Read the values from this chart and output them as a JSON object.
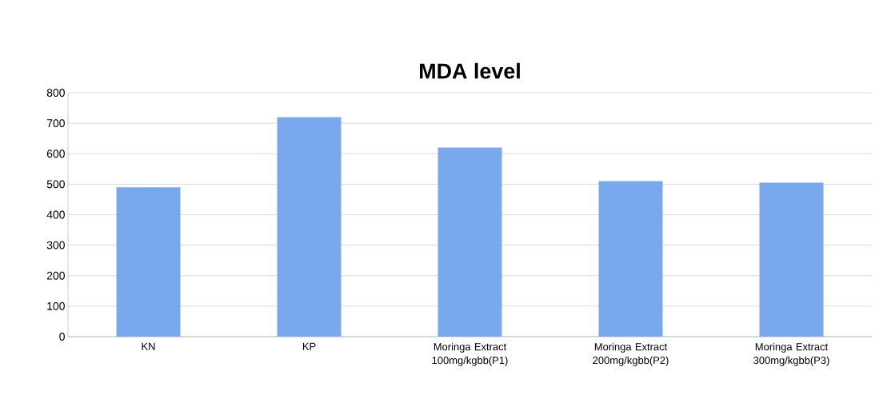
{
  "chart_data": {
    "type": "bar",
    "title": "MDA level",
    "categories": [
      "KN",
      "KP",
      "Moringa Extract 100mg/kgbb(P1)",
      "Moringa Extract 200mg/kgbb(P2)",
      "Moringa Extract 300mg/kgbb(P3)"
    ],
    "values": [
      490,
      720,
      620,
      510,
      505
    ],
    "color": "#7aa8ec",
    "ylim": [
      0,
      800
    ],
    "yticks": [
      0,
      100,
      200,
      300,
      400,
      500,
      600,
      700,
      800
    ],
    "grid": "y"
  }
}
